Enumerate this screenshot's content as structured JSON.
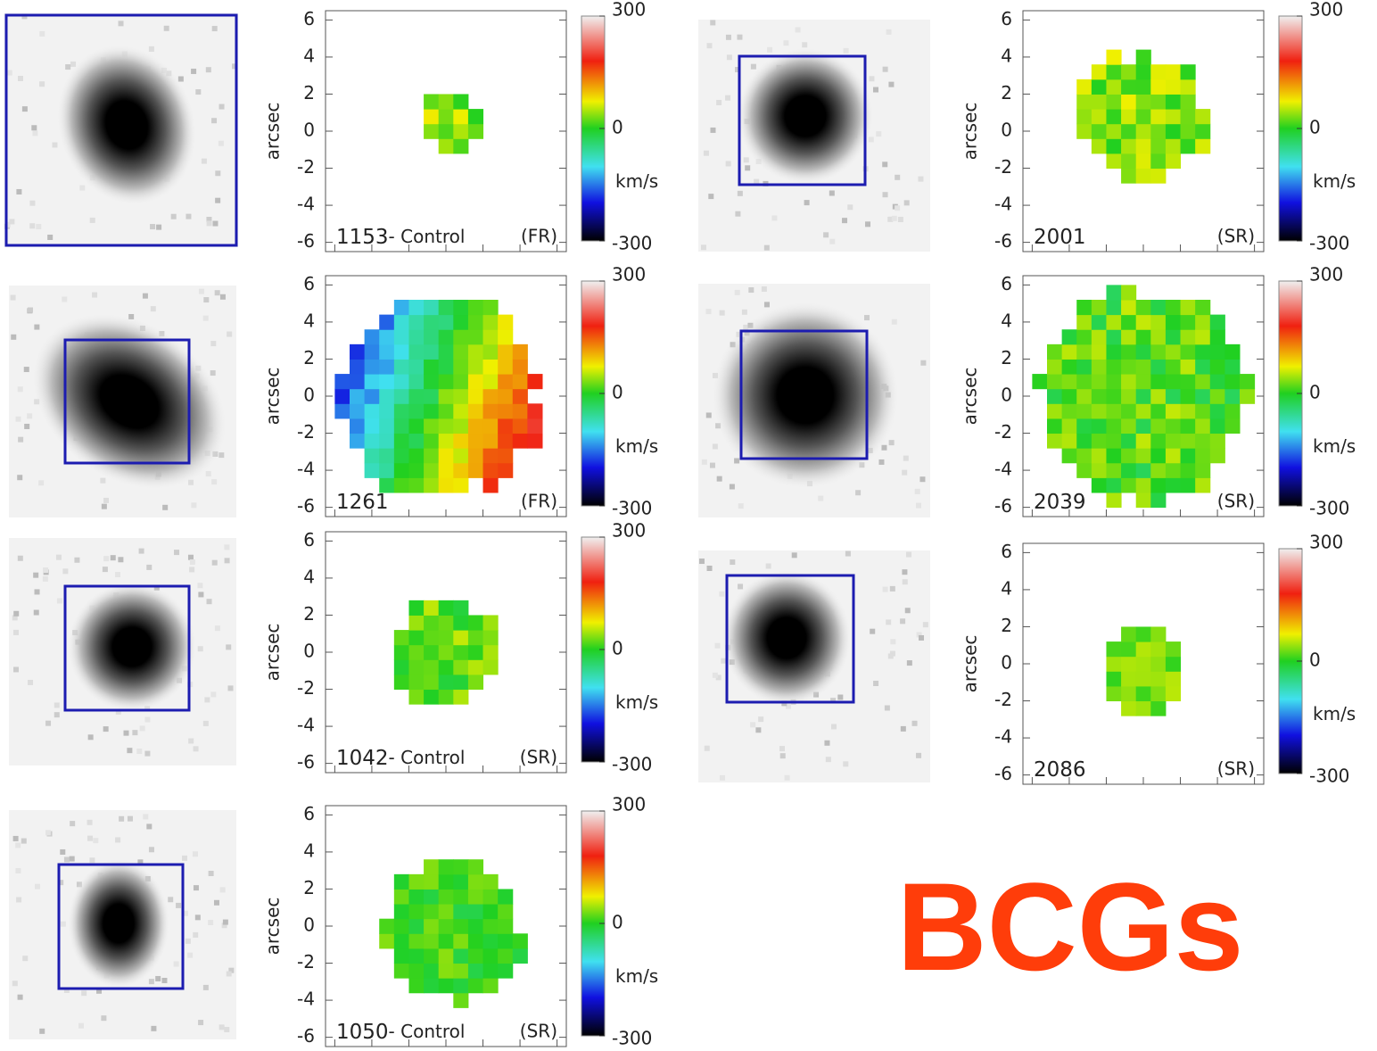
{
  "title": "BCGs",
  "axis": {
    "label": "arcsec",
    "lim": [
      -6.5,
      6.5
    ],
    "ticks": [
      6,
      4,
      2,
      0,
      -2,
      -4,
      -6
    ]
  },
  "colorbar": {
    "lim": [
      -300,
      300
    ],
    "ticks": [
      300,
      0,
      -300
    ],
    "unit": "km/s"
  },
  "panels": [
    {
      "name": "1153",
      "sample": "- Control",
      "class": "(FR)"
    },
    {
      "name": "2001",
      "class": "(SR)"
    },
    {
      "name": "1261",
      "class": "(FR)"
    },
    {
      "name": "2039",
      "class": "(SR)"
    },
    {
      "name": "1042",
      "sample": "- Control",
      "class": "(SR)"
    },
    {
      "name": "2086",
      "class": "(SR)"
    },
    {
      "name": "1050",
      "sample": "- Control",
      "class": "(SR)"
    }
  ]
}
